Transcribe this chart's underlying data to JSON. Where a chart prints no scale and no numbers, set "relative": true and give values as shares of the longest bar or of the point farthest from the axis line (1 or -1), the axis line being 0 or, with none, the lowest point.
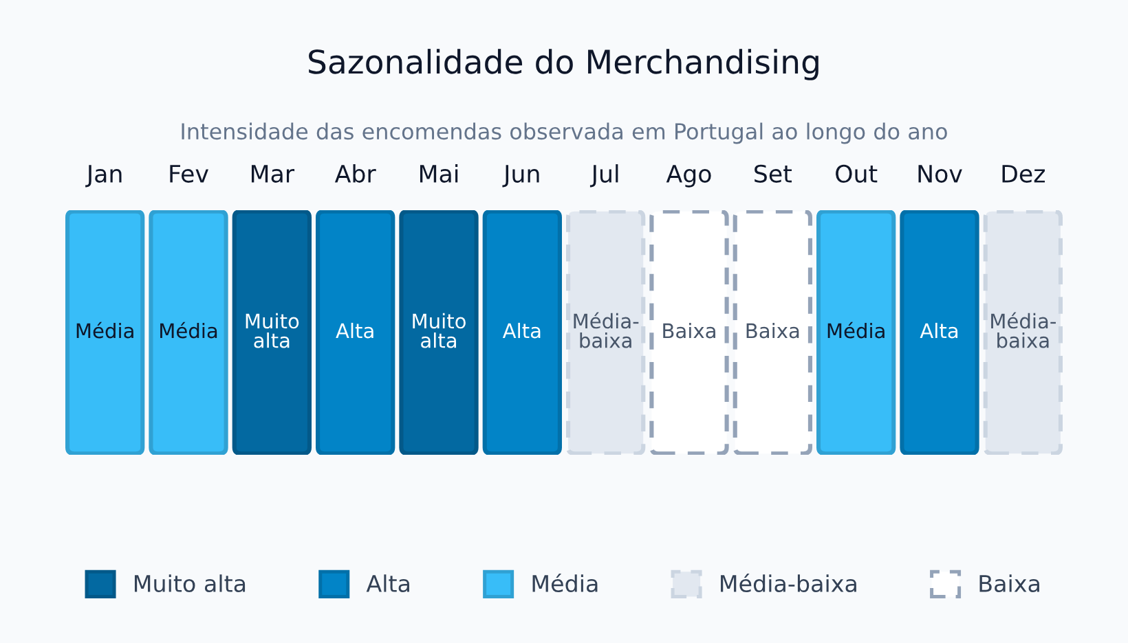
{
  "chart_data": {
    "type": "bar",
    "relative": true,
    "title": "Sazonalidade do Merchandising",
    "subtitle": "Intensidade das encomendas observada em Portugal ao longo do ano",
    "categories": [
      "Jan",
      "Fev",
      "Mar",
      "Abr",
      "Mai",
      "Jun",
      "Jul",
      "Ago",
      "Set",
      "Out",
      "Nov",
      "Dez"
    ],
    "series": [
      {
        "name": "Muito alta",
        "color": "#0369a1",
        "values": [
          null,
          null,
          1,
          null,
          1,
          null,
          null,
          null,
          null,
          null,
          null,
          null
        ]
      },
      {
        "name": "Alta",
        "color": "#0284c7",
        "values": [
          null,
          null,
          null,
          1,
          null,
          1,
          null,
          null,
          null,
          null,
          1,
          null
        ]
      },
      {
        "name": "Média",
        "color": "#38bdf8",
        "values": [
          1,
          1,
          null,
          null,
          null,
          null,
          null,
          null,
          null,
          1,
          null,
          null
        ]
      },
      {
        "name": "Média-baixa",
        "color": "#e2e8f0",
        "line_style": "dashed",
        "values": [
          null,
          null,
          null,
          null,
          null,
          null,
          1,
          null,
          null,
          null,
          null,
          1
        ]
      },
      {
        "name": "Baixa",
        "color": "#ffffff",
        "line_style": "dashed",
        "values": [
          null,
          null,
          null,
          null,
          null,
          null,
          null,
          1,
          1,
          null,
          null,
          null
        ]
      }
    ],
    "annotations": [
      "Média",
      "Média",
      "Muito alta",
      "Alta",
      "Muito alta",
      "Alta",
      "Média-baixa",
      "Baixa",
      "Baixa",
      "Média",
      "Alta",
      "Média-baixa"
    ],
    "legend": "bottom"
  }
}
